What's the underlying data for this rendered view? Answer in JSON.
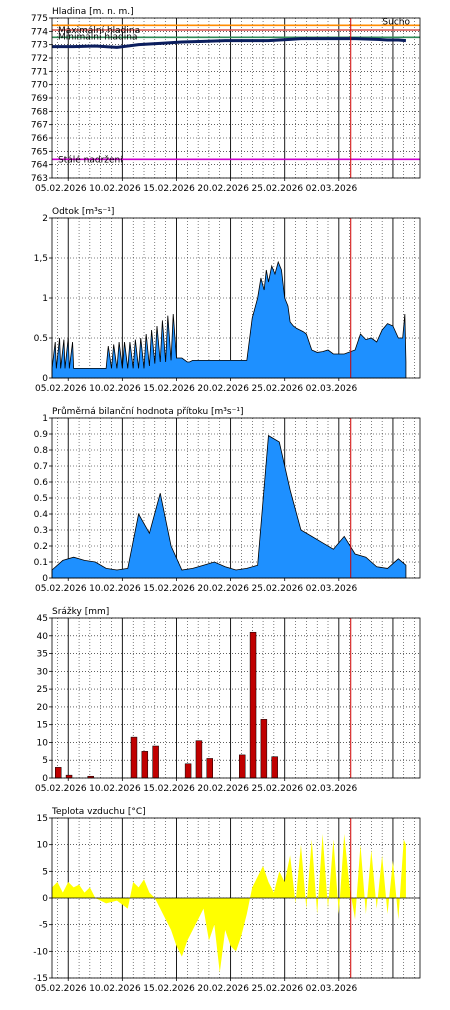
{
  "date_labels": [
    "05.02.2026",
    "10.02.2026",
    "15.02.2026",
    "20.02.2026",
    "25.02.2026",
    "02.03.2026"
  ],
  "now_day": 27.6,
  "colors": {
    "blue_fill": "#1e90ff",
    "level_line": "#0b1e5e",
    "bar_red": "#c00000",
    "yellow_fill": "#ffff00",
    "now_line": "#d00000",
    "sucho": "#ff8c00",
    "maximalni": "#d9534f",
    "minimalni": "#2e8b57",
    "stale": "#cc00cc"
  },
  "chart_data": [
    {
      "type": "line",
      "title": "Hladina [m. n. m.]",
      "ylim": [
        763,
        775
      ],
      "yticks": [
        "763",
        "764",
        "765",
        "766",
        "767",
        "768",
        "769",
        "770",
        "771",
        "772",
        "773",
        "774",
        "775"
      ],
      "reference_lines": [
        {
          "name": "Sucho",
          "value": 774.45
        },
        {
          "name": "Maximální hladina",
          "value": 774.1
        },
        {
          "name": "Minimální hladina",
          "value": 773.55
        },
        {
          "name": "Stálé nadržení",
          "value": 764.4
        }
      ],
      "series": [
        {
          "x": [
            0,
            2,
            4,
            6,
            8,
            10,
            12,
            14,
            16,
            18,
            20,
            21,
            22,
            23,
            24,
            26,
            28,
            30,
            31,
            32,
            32.7
          ],
          "y": [
            772.85,
            772.85,
            772.9,
            772.8,
            773.0,
            773.1,
            773.2,
            773.25,
            773.3,
            773.3,
            773.3,
            773.35,
            773.4,
            773.45,
            773.45,
            773.45,
            773.45,
            773.4,
            773.35,
            773.35,
            773.3
          ]
        }
      ]
    },
    {
      "type": "area",
      "title": "Odtok [m³s⁻¹]",
      "ylim": [
        0,
        2
      ],
      "yticks": [
        "0",
        "0.5",
        "1",
        "1,5",
        "2"
      ],
      "series": [
        {
          "x": [
            0,
            0.3,
            0.4,
            0.7,
            0.8,
            1.1,
            1.2,
            1.5,
            1.6,
            1.9,
            2.0,
            5.0,
            5.2,
            5.5,
            5.7,
            6.0,
            6.2,
            6.5,
            6.7,
            7.0,
            7.2,
            7.5,
            7.7,
            8.0,
            8.2,
            8.5,
            8.7,
            9.0,
            9.2,
            9.5,
            9.7,
            10.0,
            10.2,
            10.5,
            10.7,
            11.0,
            11.2,
            11.5,
            11.8,
            12.0,
            12.5,
            12.7,
            13.0,
            14.0,
            18.0,
            18.5,
            19.0,
            19.3,
            19.6,
            19.8,
            20.0,
            20.3,
            20.6,
            20.9,
            21.2,
            21.5,
            21.8,
            22.0,
            22.3,
            22.6,
            22.9,
            23.2,
            23.5,
            24.0,
            24.5,
            25.0,
            25.5,
            26.0,
            27.0,
            28.0,
            28.5,
            29.0,
            29.5,
            30.0,
            30.5,
            31.0,
            31.5,
            32.0,
            32.4,
            32.6,
            32.7
          ],
          "y": [
            0.12,
            0.45,
            0.12,
            0.5,
            0.12,
            0.48,
            0.12,
            0.5,
            0.12,
            0.45,
            0.12,
            0.12,
            0.4,
            0.12,
            0.42,
            0.12,
            0.45,
            0.12,
            0.45,
            0.12,
            0.45,
            0.12,
            0.48,
            0.12,
            0.5,
            0.12,
            0.55,
            0.15,
            0.6,
            0.18,
            0.65,
            0.2,
            0.72,
            0.2,
            0.78,
            0.22,
            0.8,
            0.25,
            0.25,
            0.25,
            0.2,
            0.2,
            0.22,
            0.22,
            0.22,
            0.75,
            1.0,
            1.25,
            1.1,
            1.35,
            1.2,
            1.4,
            1.3,
            1.45,
            1.35,
            1.0,
            0.9,
            0.7,
            0.65,
            0.62,
            0.6,
            0.58,
            0.55,
            0.35,
            0.32,
            0.33,
            0.35,
            0.3,
            0.3,
            0.35,
            0.55,
            0.48,
            0.5,
            0.45,
            0.6,
            0.68,
            0.65,
            0.5,
            0.5,
            0.8,
            0.2
          ]
        }
      ]
    },
    {
      "type": "area",
      "title": "Průměrná bilanční hodnota přítoku [m³s⁻¹]",
      "ylim": [
        0,
        1.0
      ],
      "yticks": [
        "0",
        "0.1",
        "0.2",
        "0.3",
        "0.4",
        "0.5",
        "0.6",
        "0.7",
        "0.8",
        "0.9",
        "1"
      ],
      "series": [
        {
          "x": [
            0,
            1,
            2,
            3,
            4,
            5,
            6,
            7,
            8,
            9,
            10,
            11,
            12,
            13,
            14,
            15,
            16,
            17,
            18,
            19,
            20,
            21,
            22,
            23,
            24,
            25,
            26,
            27,
            28,
            29,
            30,
            31,
            32,
            32.7
          ],
          "y": [
            0.05,
            0.11,
            0.13,
            0.11,
            0.1,
            0.06,
            0.05,
            0.06,
            0.4,
            0.28,
            0.53,
            0.2,
            0.05,
            0.06,
            0.08,
            0.1,
            0.07,
            0.05,
            0.06,
            0.08,
            0.89,
            0.85,
            0.55,
            0.3,
            0.26,
            0.22,
            0.18,
            0.26,
            0.15,
            0.13,
            0.07,
            0.06,
            0.12,
            0.08
          ]
        }
      ]
    },
    {
      "type": "bar",
      "title": "Srážky [mm]",
      "ylim": [
        0,
        45
      ],
      "yticks": [
        "0",
        "5",
        "10",
        "15",
        "20",
        "25",
        "30",
        "35",
        "40",
        "45"
      ],
      "bars": [
        {
          "day": 0.1,
          "value": 3.0
        },
        {
          "day": 1.1,
          "value": 0.8
        },
        {
          "day": 3.1,
          "value": 0.5
        },
        {
          "day": 7.1,
          "value": 11.5
        },
        {
          "day": 8.1,
          "value": 7.5
        },
        {
          "day": 9.1,
          "value": 9.0
        },
        {
          "day": 12.1,
          "value": 4.0
        },
        {
          "day": 13.1,
          "value": 10.5
        },
        {
          "day": 14.1,
          "value": 5.5
        },
        {
          "day": 17.1,
          "value": 6.5
        },
        {
          "day": 18.1,
          "value": 41.0
        },
        {
          "day": 19.1,
          "value": 16.5
        },
        {
          "day": 20.1,
          "value": 6.0
        }
      ]
    },
    {
      "type": "area",
      "title": "Teplota vzduchu [°C]",
      "ylim": [
        -15,
        15
      ],
      "yticks": [
        "-15",
        "-10",
        "-5",
        "0",
        "5",
        "10",
        "15"
      ],
      "series": [
        {
          "x": [
            0,
            0.5,
            1,
            1.5,
            2,
            2.5,
            3,
            3.5,
            4,
            5,
            6,
            7,
            7.5,
            8,
            8.5,
            9,
            9.5,
            10,
            10.5,
            11,
            11.5,
            12,
            12.5,
            13,
            13.5,
            14,
            14.5,
            15,
            15.5,
            16,
            16.5,
            17,
            17.5,
            18,
            18.5,
            19,
            19.5,
            20,
            20.5,
            21,
            21.5,
            22,
            22.5,
            23,
            23.5,
            24,
            24.5,
            25,
            25.5,
            26,
            26.5,
            27,
            27.5,
            28,
            28.5,
            29,
            29.5,
            30,
            30.5,
            31,
            31.5,
            32,
            32.5,
            32.7
          ],
          "y": [
            2,
            3,
            1,
            3,
            2,
            2.5,
            1,
            2,
            0,
            -1,
            -0.5,
            -2,
            3,
            2,
            3.5,
            1,
            0,
            -2,
            -4,
            -6,
            -9,
            -11,
            -8,
            -6,
            -4,
            -2,
            -8,
            -5,
            -14,
            -6,
            -9,
            -10,
            -7,
            -3,
            2,
            4,
            6,
            3,
            1,
            5,
            3,
            8,
            -1,
            10,
            -2,
            11,
            -3,
            12,
            -2,
            11,
            -3,
            12,
            2,
            -4,
            10,
            -3,
            9,
            -2,
            8,
            -3,
            7,
            -4,
            11,
            10
          ]
        }
      ]
    }
  ]
}
